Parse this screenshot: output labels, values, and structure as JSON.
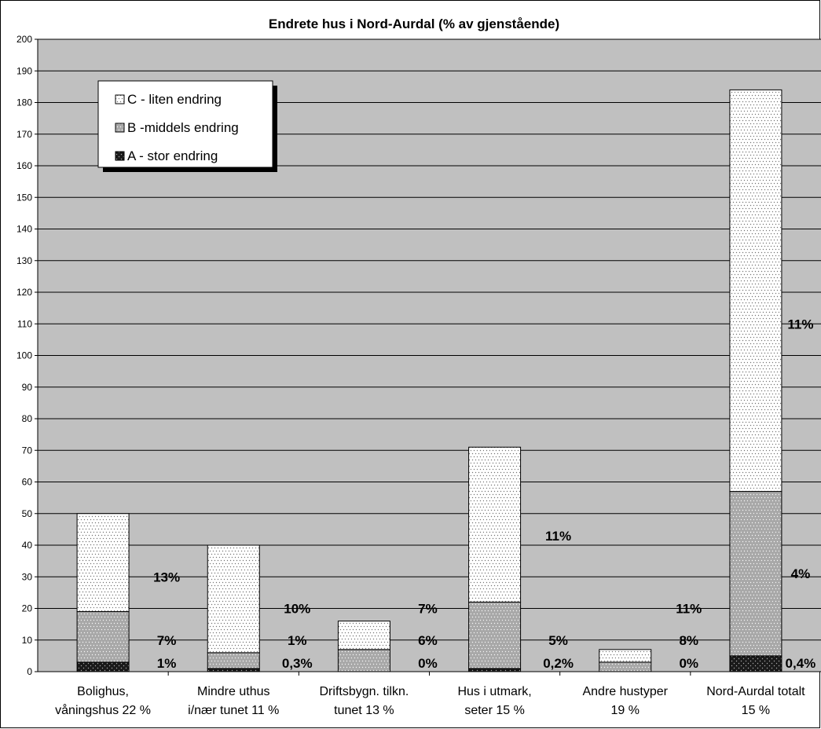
{
  "chart_data": {
    "type": "bar",
    "stacked": true,
    "title": "Endrete hus i Nord-Aurdal (% av gjenstående)",
    "xlabel": "",
    "ylabel": "",
    "ylim": [
      0,
      200
    ],
    "yticks": [
      0,
      10,
      20,
      30,
      40,
      50,
      60,
      70,
      80,
      90,
      100,
      110,
      120,
      130,
      140,
      150,
      160,
      170,
      180,
      190,
      200
    ],
    "grid": true,
    "legend_position": "top-left",
    "categories": [
      [
        "Bolighus,",
        "våningshus 22 %"
      ],
      [
        "Mindre uthus",
        "i/nær tunet 11 %"
      ],
      [
        "Driftsbygn. tilkn.",
        "tunet  13 %"
      ],
      [
        "Hus i utmark,",
        "seter 15 %"
      ],
      [
        "Andre hustyper",
        "19 %"
      ],
      [
        "Nord-Aurdal totalt",
        "15 %"
      ]
    ],
    "series": [
      {
        "name": "A - stor endring",
        "values": [
          3,
          1,
          0,
          1,
          0,
          5
        ],
        "labels": [
          "1%",
          "0,3%",
          "0%",
          "0,2%",
          "0%",
          "0,4%"
        ]
      },
      {
        "name": "B -middels endring",
        "values": [
          16,
          5,
          7,
          21,
          3,
          52
        ],
        "labels": [
          "7%",
          "1%",
          "6%",
          "5%",
          "8%",
          "4%"
        ]
      },
      {
        "name": "C - liten endring",
        "values": [
          31,
          34,
          9,
          49,
          4,
          127
        ],
        "labels": [
          "13%",
          "10%",
          "7%",
          "11%",
          "11%",
          "11%"
        ]
      }
    ],
    "colors": {
      "plot_bg": "#c0c0c0",
      "A": "#1a1a1a",
      "B": "#a8a8a8",
      "C": "#ffffff"
    }
  }
}
